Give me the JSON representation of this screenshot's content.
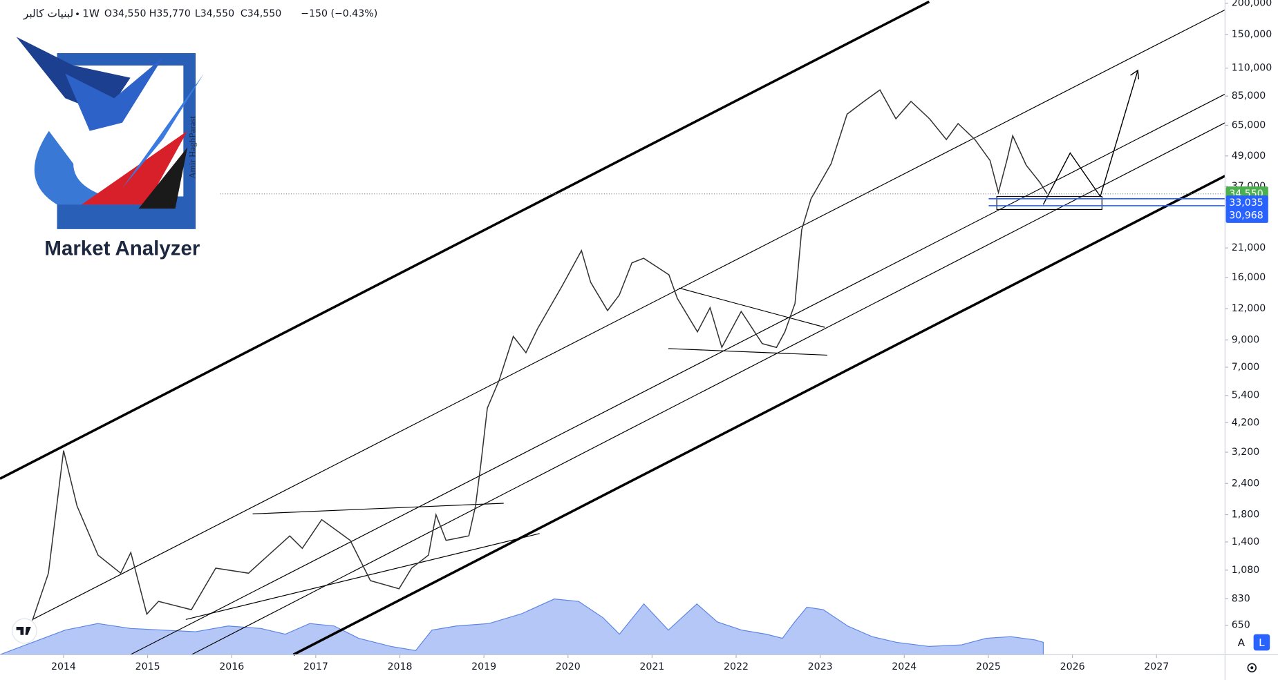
{
  "header": {
    "symbol": "لبنیات کالبر",
    "interval": "1W",
    "ohlc": [
      "O34,550",
      "H35,770",
      "L34,550",
      "C34,550"
    ],
    "change": "−150 (−0.43%)"
  },
  "logo": {
    "title": "Market Analyzer",
    "author": "Amir HaghParast"
  },
  "toolbar": {
    "auto": "A",
    "log": "L"
  },
  "chart_data": {
    "type": "line",
    "log_scale": true,
    "color": "#333333",
    "x": [
      2013.63,
      2013.82,
      2014.0,
      2014.16,
      2014.41,
      2014.68,
      2014.8,
      2014.99,
      2015.13,
      2015.52,
      2015.81,
      2016.2,
      2016.69,
      2016.84,
      2017.07,
      2017.41,
      2017.65,
      2017.99,
      2018.14,
      2018.34,
      2018.43,
      2018.55,
      2018.82,
      2018.9,
      2018.96,
      2019.04,
      2019.18,
      2019.35,
      2019.5,
      2019.64,
      2019.93,
      2020.16,
      2020.27,
      2020.47,
      2020.61,
      2020.76,
      2020.9,
      2021.2,
      2021.3,
      2021.54,
      2021.69,
      2021.83,
      2022.06,
      2022.31,
      2022.48,
      2022.58,
      2022.7,
      2022.78,
      2022.89,
      2023.13,
      2023.32,
      2023.52,
      2023.71,
      2023.9,
      2024.08,
      2024.3,
      2024.5,
      2024.64,
      2024.84,
      2025.02,
      2025.12,
      2025.22,
      2025.29,
      2025.45,
      2025.61,
      2025.7
    ],
    "values": [
      680,
      1050,
      3250,
      1950,
      1240,
      1050,
      1270,
      720,
      810,
      750,
      1100,
      1050,
      1480,
      1320,
      1720,
      1420,
      980,
      910,
      1100,
      1240,
      1800,
      1420,
      1480,
      1950,
      2800,
      4800,
      6200,
      9300,
      8000,
      10000,
      14800,
      20500,
      15300,
      11800,
      13600,
      18300,
      19100,
      16400,
      13200,
      9700,
      12100,
      8400,
      11700,
      8700,
      8400,
      9700,
      12600,
      24800,
      33000,
      45600,
      72000,
      81000,
      90000,
      69000,
      81000,
      69000,
      57000,
      66000,
      57000,
      47000,
      35000,
      47000,
      59000,
      45000,
      38500,
      34550
    ],
    "xlim": [
      2013.244,
      2027.815
    ],
    "xticks": [
      2014,
      2015,
      2016,
      2017,
      2018,
      2019,
      2020,
      2021,
      2022,
      2023,
      2024,
      2025,
      2026,
      2027
    ],
    "ylim": [
      496,
      206000
    ],
    "yticks": [
      {
        "value": 200000,
        "label": "200,000"
      },
      {
        "value": 150000,
        "label": "150,000"
      },
      {
        "value": 110000,
        "label": "110,000"
      },
      {
        "value": 85000,
        "label": "85,000"
      },
      {
        "value": 65000,
        "label": "65,000"
      },
      {
        "value": 49000,
        "label": "49,000"
      },
      {
        "value": 37000,
        "label": "37,000"
      },
      {
        "value": 21000,
        "label": "21,000"
      },
      {
        "value": 16000,
        "label": "16,000"
      },
      {
        "value": 12000,
        "label": "12,000"
      },
      {
        "value": 9000,
        "label": "9,000"
      },
      {
        "value": 7000,
        "label": "7,000"
      },
      {
        "value": 5400,
        "label": "5,400"
      },
      {
        "value": 4200,
        "label": "4,200"
      },
      {
        "value": 3200,
        "label": "3,200"
      },
      {
        "value": 2400,
        "label": "2,400"
      },
      {
        "value": 1800,
        "label": "1,800"
      },
      {
        "value": 1400,
        "label": "1,400"
      },
      {
        "value": 1080,
        "label": "1,080"
      },
      830,
      650
    ],
    "price_labels": [
      {
        "value": 34550,
        "label": "34,550",
        "color": "#4caf50"
      },
      {
        "value": 33035,
        "label": "33,035",
        "color": "#2962ff"
      },
      {
        "value": 30968,
        "label": "30,968",
        "color": "#2962ff"
      }
    ]
  }
}
